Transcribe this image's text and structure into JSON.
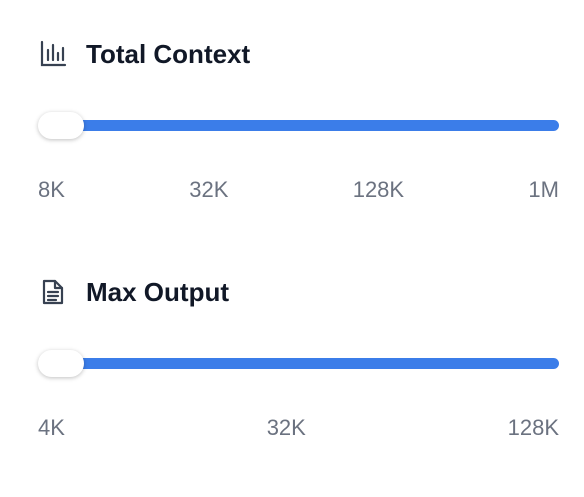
{
  "sections": [
    {
      "title": "Total Context",
      "ticks": [
        "8K",
        "32K",
        "128K",
        "1M"
      ]
    },
    {
      "title": "Max Output",
      "ticks": [
        "4K",
        "32K",
        "128K"
      ]
    }
  ]
}
